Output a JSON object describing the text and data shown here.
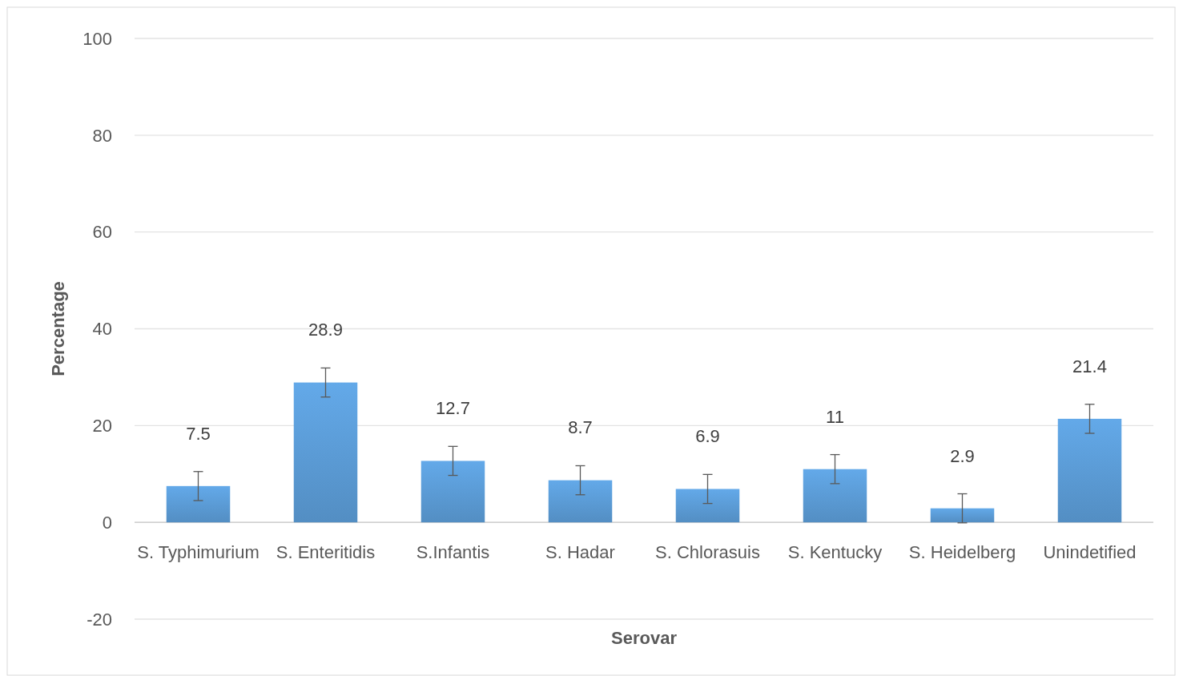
{
  "chart_data": {
    "type": "bar",
    "xlabel": "Serovar",
    "ylabel": "Percentage",
    "categories": [
      "S. Typhimurium",
      "S. Enteritidis",
      "S.Infantis",
      "S. Hadar",
      "S. Chlorasuis",
      "S. Kentucky",
      "S. Heidelberg",
      "Unindetified"
    ],
    "values": [
      7.5,
      28.9,
      12.7,
      8.7,
      6.9,
      11,
      2.9,
      21.4
    ],
    "errors": [
      3,
      3,
      3,
      3,
      3,
      3,
      3,
      3
    ],
    "color": "#5b9bd5",
    "ylim": [
      -20,
      100
    ],
    "yticks": [
      -20,
      0,
      20,
      40,
      60,
      80,
      100
    ],
    "grid": "y",
    "data_labels": true
  }
}
